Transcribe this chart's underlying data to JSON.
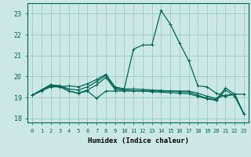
{
  "title": "",
  "xlabel": "Humidex (Indice chaleur)",
  "background_color": "#cce8e4",
  "grid_color": "#99cccc",
  "line_color": "#006655",
  "xlim": [
    -0.5,
    23.5
  ],
  "ylim": [
    17.8,
    23.5
  ],
  "yticks": [
    18,
    19,
    20,
    21,
    22,
    23
  ],
  "xticks": [
    0,
    1,
    2,
    3,
    4,
    5,
    6,
    7,
    8,
    9,
    10,
    11,
    12,
    13,
    14,
    15,
    16,
    17,
    18,
    19,
    20,
    21,
    22,
    23
  ],
  "series": [
    [
      19.1,
      19.35,
      19.6,
      19.5,
      19.55,
      19.5,
      19.65,
      19.85,
      20.1,
      19.5,
      19.4,
      21.3,
      21.5,
      21.5,
      23.15,
      22.5,
      21.6,
      20.75,
      19.55,
      19.5,
      19.2,
      19.05,
      19.15,
      19.15
    ],
    [
      19.1,
      19.35,
      19.55,
      19.55,
      19.3,
      19.2,
      19.3,
      18.95,
      19.3,
      19.3,
      19.3,
      19.3,
      19.3,
      19.3,
      19.3,
      19.3,
      19.3,
      19.3,
      19.2,
      19.05,
      18.95,
      19.1,
      19.15,
      18.2
    ],
    [
      19.1,
      19.35,
      19.6,
      19.55,
      19.4,
      19.35,
      19.5,
      19.75,
      20.05,
      19.45,
      19.4,
      19.4,
      19.38,
      19.35,
      19.33,
      19.3,
      19.28,
      19.25,
      19.1,
      18.95,
      18.9,
      19.45,
      19.15,
      18.2
    ],
    [
      19.1,
      19.3,
      19.5,
      19.5,
      19.3,
      19.2,
      19.35,
      19.6,
      19.95,
      19.38,
      19.35,
      19.32,
      19.3,
      19.27,
      19.25,
      19.22,
      19.2,
      19.17,
      19.05,
      18.93,
      18.85,
      19.35,
      19.05,
      18.2
    ]
  ]
}
